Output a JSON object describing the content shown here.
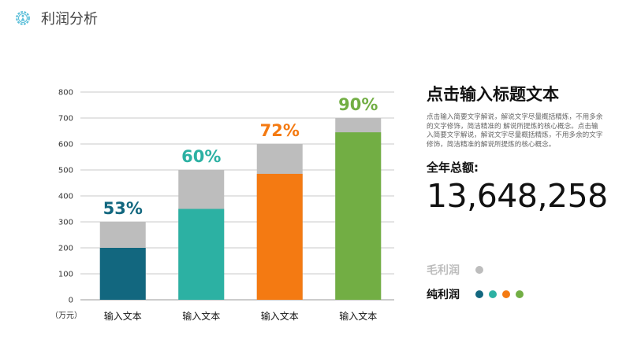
{
  "header": {
    "title": "利润分析",
    "logo_icon": "gear-person-icon",
    "logo_color": "#5bbfd9"
  },
  "chart_data": {
    "type": "bar",
    "unit_label": "（万元）",
    "ylim": [
      0,
      800
    ],
    "yticks": [
      "0",
      "100",
      "200",
      "300",
      "400",
      "500",
      "600",
      "700",
      "800"
    ],
    "categories": [
      "输入文本",
      "输入文本",
      "输入文本",
      "输入文本"
    ],
    "series": [
      {
        "name": "毛利润",
        "values": [
          300,
          500,
          600,
          700
        ],
        "color": "#bdbdbd"
      },
      {
        "name": "纯利润",
        "values": [
          200,
          350,
          485,
          645
        ],
        "colors": [
          "#12677f",
          "#2cb1a3",
          "#f47a12",
          "#72ae44"
        ]
      }
    ],
    "data_labels": [
      "53%",
      "60%",
      "72%",
      "90%"
    ],
    "label_colors": [
      "#12677f",
      "#2cb1a3",
      "#f47a12",
      "#72ae44"
    ],
    "grid": true
  },
  "side": {
    "title": "点击输入标题文本",
    "description": "点击输入简要文字解说，解说文字尽量概括精炼，不用多余的文字修饰，简洁精准的 解说所提炼的核心概念。点击输入简要文字解说，解说文字尽量概括精炼，不用多余的文字修饰，简洁精准的解说所提炼的核心概念。",
    "total_label": "全年总额:",
    "total_value": "13,648,258"
  },
  "legend": [
    {
      "label": "毛利润",
      "label_color": "#bdbdbd",
      "dots": [
        "#bdbdbd"
      ]
    },
    {
      "label": "纯利润",
      "label_color": "#111111",
      "dots": [
        "#12677f",
        "#2cb1a3",
        "#f47a12",
        "#72ae44"
      ]
    }
  ]
}
